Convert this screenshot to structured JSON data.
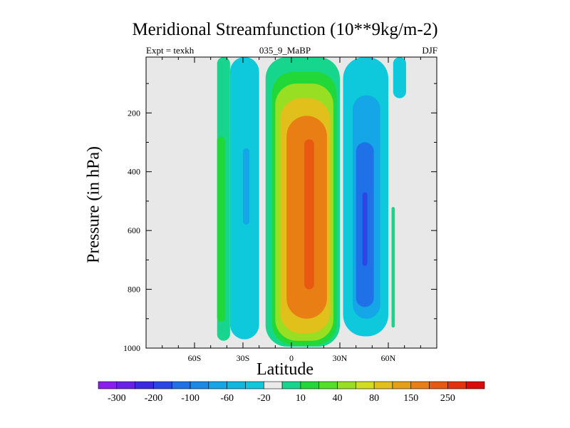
{
  "chart_data": {
    "type": "heatmap",
    "title": "Meridional Streamfunction (10**9kg/m-2)",
    "subtitle_left": "Expt = texkh",
    "subtitle_center": "035_9_MaBP",
    "subtitle_right": "DJF",
    "xlabel": "Latitude",
    "ylabel": "Pressure (in hPa)",
    "x_ticks": [
      "60S",
      "30S",
      "0",
      "30N",
      "60N"
    ],
    "x_tick_values": [
      -60,
      -30,
      0,
      30,
      60
    ],
    "xlim": [
      -90,
      90
    ],
    "y_ticks": [
      "200",
      "400",
      "600",
      "800",
      "1000"
    ],
    "y_tick_values": [
      200,
      400,
      600,
      800,
      1000
    ],
    "ylim": [
      10,
      1000
    ],
    "colorbar_labels": [
      "-300",
      "-200",
      "-100",
      "-60",
      "-20",
      "10",
      "40",
      "80",
      "150",
      "250"
    ],
    "colorbar_colors": [
      "#8a1ef0",
      "#6a20e8",
      "#3c2ae0",
      "#2a46e6",
      "#2070e8",
      "#1b8ae6",
      "#14a6e6",
      "#10b8e0",
      "#0ec8dc",
      "#eaeaea",
      "#16d68e",
      "#22d838",
      "#52e028",
      "#98de22",
      "#d2dc20",
      "#e2c01c",
      "#e6a018",
      "#e87e14",
      "#e85810",
      "#e4320c",
      "#dc0a0a"
    ],
    "contour_regions": [
      {
        "level": "10",
        "lat_range": [
          -46,
          -38
        ],
        "p_range": [
          10,
          975
        ]
      },
      {
        "level": "40",
        "lat_range": [
          -46,
          -41
        ],
        "p_range": [
          280,
          910
        ]
      },
      {
        "level": "-20",
        "lat_range": [
          -38,
          -20
        ],
        "p_range": [
          10,
          970
        ]
      },
      {
        "level": "-60",
        "lat_range": [
          -30,
          -26
        ],
        "p_range": [
          320,
          580
        ]
      },
      {
        "level": "10",
        "lat_range": [
          -16,
          30
        ],
        "p_range": [
          10,
          995
        ]
      },
      {
        "level": "40",
        "lat_range": [
          -12,
          28
        ],
        "p_range": [
          60,
          990
        ]
      },
      {
        "level": "80",
        "lat_range": [
          -10,
          26
        ],
        "p_range": [
          100,
          975
        ]
      },
      {
        "level": "150",
        "lat_range": [
          -7,
          24
        ],
        "p_range": [
          150,
          950
        ]
      },
      {
        "level": "250",
        "lat_range": [
          -3,
          22
        ],
        "p_range": [
          210,
          900
        ]
      },
      {
        "level": "300",
        "lat_range": [
          8,
          14
        ],
        "p_range": [
          290,
          800
        ]
      },
      {
        "level": "-20",
        "lat_range": [
          32,
          60
        ],
        "p_range": [
          10,
          960
        ]
      },
      {
        "level": "-60",
        "lat_range": [
          38,
          55
        ],
        "p_range": [
          140,
          900
        ]
      },
      {
        "level": "-100",
        "lat_range": [
          40,
          51
        ],
        "p_range": [
          300,
          860
        ]
      },
      {
        "level": "-200",
        "lat_range": [
          44,
          47
        ],
        "p_range": [
          470,
          720
        ]
      },
      {
        "level": "-20",
        "lat_range": [
          63,
          71
        ],
        "p_range": [
          10,
          150
        ]
      },
      {
        "level": "10",
        "lat_range": [
          62,
          64
        ],
        "p_range": [
          520,
          930
        ]
      }
    ]
  }
}
